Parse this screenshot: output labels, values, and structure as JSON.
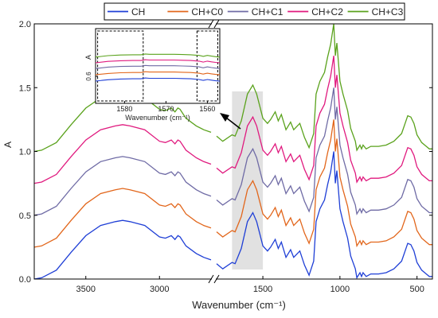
{
  "chart_data": {
    "type": "line",
    "xlabel": "Wavenumber (cm⁻¹)",
    "ylabel": "A",
    "ylim": [
      0.0,
      2.0
    ],
    "y_ticks": [
      "0.0",
      "0.5",
      "1.0",
      "1.5",
      "2.0"
    ],
    "x_axis_broken": true,
    "x_segments": [
      {
        "range": [
          3850,
          2650
        ],
        "tick_values": [
          3500,
          3000
        ]
      },
      {
        "range": [
          1800,
          400
        ],
        "tick_values": [
          1500,
          1000,
          500
        ]
      }
    ],
    "grid": false,
    "legend_position": "top",
    "series": [
      {
        "name": "CH",
        "color": "#1f3fd6",
        "offset": 0.0
      },
      {
        "name": "CH+C0",
        "color": "#e2661b",
        "offset": 0.25
      },
      {
        "name": "CH+C1",
        "color": "#6f6ba5",
        "offset": 0.5
      },
      {
        "name": "CH+C2",
        "color": "#e0197e",
        "offset": 0.75
      },
      {
        "name": "CH+C3",
        "color": "#5aa21c",
        "offset": 1.0
      }
    ],
    "base_profile": {
      "segment_1": {
        "x": [
          3850,
          3800,
          3700,
          3600,
          3500,
          3400,
          3300,
          3250,
          3200,
          3100,
          3000,
          2960,
          2920,
          2895,
          2875,
          2860,
          2820,
          2750,
          2700,
          2650
        ],
        "y": [
          0.0,
          0.01,
          0.07,
          0.21,
          0.34,
          0.42,
          0.45,
          0.46,
          0.45,
          0.42,
          0.33,
          0.32,
          0.34,
          0.31,
          0.34,
          0.33,
          0.26,
          0.2,
          0.17,
          0.15
        ]
      },
      "segment_2": {
        "x": [
          1800,
          1760,
          1700,
          1680,
          1660,
          1640,
          1600,
          1565,
          1540,
          1500,
          1470,
          1450,
          1420,
          1400,
          1380,
          1350,
          1320,
          1300,
          1260,
          1230,
          1200,
          1170,
          1155,
          1130,
          1100,
          1080,
          1060,
          1040,
          1030,
          1020,
          1000,
          980,
          950,
          930,
          900,
          890,
          870,
          860,
          850,
          830,
          800,
          750,
          700,
          650,
          600,
          560,
          540,
          520,
          500,
          470,
          440,
          420,
          400
        ],
        "y": [
          0.12,
          0.08,
          0.13,
          0.12,
          0.18,
          0.24,
          0.45,
          0.52,
          0.45,
          0.26,
          0.22,
          0.25,
          0.31,
          0.24,
          0.29,
          0.17,
          0.23,
          0.17,
          0.22,
          0.11,
          0.03,
          0.14,
          0.45,
          0.55,
          0.62,
          0.74,
          0.84,
          1.0,
          0.75,
          0.85,
          0.55,
          0.45,
          0.32,
          0.18,
          0.08,
          0.01,
          0.05,
          0.02,
          0.05,
          0.02,
          0.04,
          0.04,
          0.05,
          0.08,
          0.14,
          0.28,
          0.27,
          0.22,
          0.13,
          0.07,
          0.04,
          0.02,
          0.02
        ]
      }
    },
    "highlight_band": {
      "x": [
        1700,
        1500
      ]
    },
    "inset": {
      "xlabel": "Wavenumber (cm⁻¹)",
      "ylabel": "A",
      "y_tick_label": "0.6",
      "xlim": [
        1587,
        1557
      ],
      "x_ticks": [
        "1580",
        "1570",
        "1560"
      ],
      "dashed_boxes": [
        [
          1586.5,
          1575.5
        ],
        [
          1562.5,
          1557.5
        ]
      ],
      "profile": {
        "x": [
          1587,
          1584,
          1581,
          1578,
          1576,
          1575,
          1574,
          1572,
          1570,
          1568,
          1566,
          1564,
          1562,
          1561,
          1560.5,
          1560,
          1559,
          1558,
          1557
        ],
        "y": [
          0.0,
          0.12,
          0.18,
          0.2,
          0.2,
          0.27,
          0.24,
          0.24,
          0.24,
          0.24,
          0.22,
          0.2,
          0.14,
          0.06,
          0.1,
          0.14,
          0.08,
          0.03,
          0.0
        ]
      },
      "series_offsets": [
        0.0,
        0.55,
        1.1,
        1.6,
        2.1
      ]
    }
  }
}
